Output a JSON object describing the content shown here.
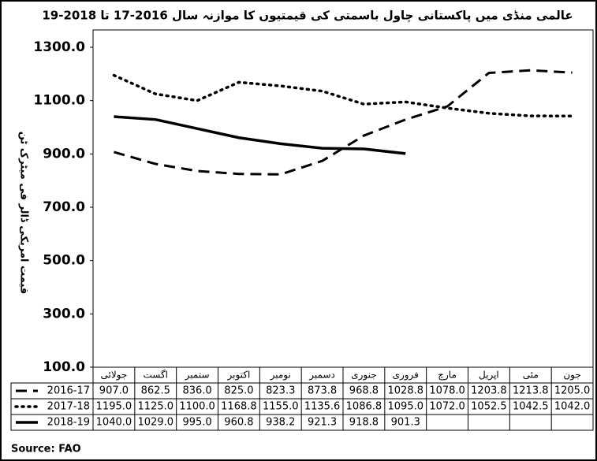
{
  "chart_data": {
    "type": "line",
    "title": "عالمی منڈی میں پاکستانی چاول باسمتی کی قیمتیوں کا موازنہ سال 2016-17 تا 2018-19",
    "y_label": "قیمت امریکی ڈالر فی میٹرک ٹن",
    "source": "Source: FAO",
    "categories": [
      "جولائی",
      "اگست",
      "ستمبر",
      "اکتوبر",
      "نومبر",
      "دسمبر",
      "جنوری",
      "فروری",
      "مارچ",
      "اپریل",
      "مئی",
      "جون"
    ],
    "series": [
      {
        "name": "2016-17",
        "color": "#000000",
        "line_style": "dashed",
        "values": [
          907.0,
          862.5,
          836.0,
          825.0,
          823.3,
          873.8,
          968.8,
          1028.8,
          1078.0,
          1203.8,
          1213.8,
          1205.0
        ],
        "value_labels": [
          "907.0",
          "862.5",
          "836.0",
          "825.0",
          "823.3",
          "873.8",
          "968.8",
          "1028.8",
          "1078.0",
          "1203.8",
          "1213.8",
          "1205.0"
        ]
      },
      {
        "name": "2017-18",
        "color": "#000000",
        "line_style": "dotted",
        "values": [
          1195.0,
          1125.0,
          1100.0,
          1168.8,
          1155.0,
          1135.6,
          1086.8,
          1095.0,
          1072.0,
          1052.5,
          1042.5,
          1042.0
        ],
        "value_labels": [
          "1195.0",
          "1125.0",
          "1100.0",
          "1168.8",
          "1155.0",
          "1135.6",
          "1086.8",
          "1095.0",
          "1072.0",
          "1052.5",
          "1042.5",
          "1042.0"
        ]
      },
      {
        "name": "2018-19",
        "color": "#000000",
        "line_style": "solid",
        "values": [
          1040.0,
          1029.0,
          995.0,
          960.8,
          938.2,
          921.3,
          918.8,
          901.3,
          null,
          null,
          null,
          null
        ],
        "value_labels": [
          "1040.0",
          "1029.0",
          "995.0",
          "960.8",
          "938.2",
          "921.3",
          "918.8",
          "901.3",
          null,
          null,
          null,
          null
        ]
      }
    ],
    "ylim": [
      100,
      1300
    ],
    "yticks": [
      {
        "value": 100,
        "label": "100.0"
      },
      {
        "value": 300,
        "label": "300.0"
      },
      {
        "value": 500,
        "label": "500.0"
      },
      {
        "value": 700,
        "label": "700.0"
      },
      {
        "value": 900,
        "label": "900.0"
      },
      {
        "value": 1100,
        "label": "1100.0"
      },
      {
        "value": 1300,
        "label": "1300.0"
      }
    ],
    "grid": false
  }
}
